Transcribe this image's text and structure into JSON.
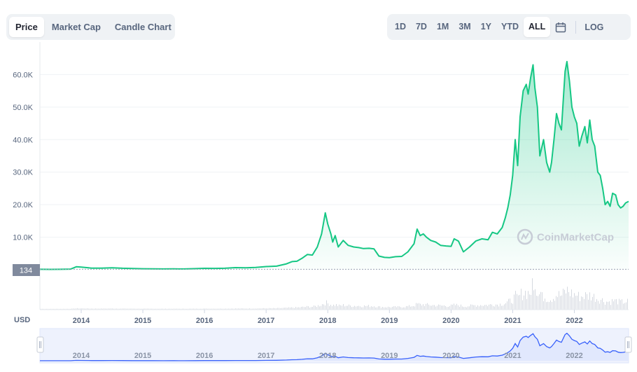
{
  "tabs": [
    "Price",
    "Market Cap",
    "Candle Chart"
  ],
  "active_tab": "Price",
  "ranges": [
    "1D",
    "7D",
    "1M",
    "3M",
    "1Y",
    "YTD",
    "ALL"
  ],
  "active_range": "ALL",
  "log_label": "LOG",
  "watermark": "CoinMarketCap",
  "currency_label": "USD",
  "current_price_label": "134",
  "colors": {
    "line": "#16c784",
    "navigator_line": "#3861fb",
    "navigator_fill": "#e3e9fd"
  },
  "icons": {
    "calendar": "calendar-icon",
    "logo": "coinmarketcap-logo-icon",
    "handle": "navigator-handle-icon"
  },
  "chart_data": {
    "type": "area",
    "ylim": [
      0,
      70000
    ],
    "yticks": [
      10000,
      20000,
      30000,
      40000,
      50000,
      60000
    ],
    "ytick_labels": [
      "10.0K",
      "20.0K",
      "30.0K",
      "40.0K",
      "50.0K",
      "60.0K"
    ],
    "xticks": [
      "2014",
      "2015",
      "2016",
      "2017",
      "2018",
      "2019",
      "2020",
      "2021",
      "2022"
    ],
    "xlim": [
      2013.33,
      2022.88
    ],
    "grid": true,
    "series": [
      {
        "x": [
          2013.33,
          2013.5,
          2013.67,
          2013.83,
          2013.92,
          2014.0,
          2014.17,
          2014.33,
          2014.5,
          2014.67,
          2014.83,
          2015.0,
          2015.17,
          2015.33,
          2015.5,
          2015.67,
          2015.83,
          2016.0,
          2016.17,
          2016.33,
          2016.5,
          2016.67,
          2016.83,
          2017.0,
          2017.17,
          2017.33,
          2017.42,
          2017.5,
          2017.58,
          2017.67,
          2017.75,
          2017.83,
          2017.9,
          2017.96,
          2018.0,
          2018.05,
          2018.08,
          2018.12,
          2018.17,
          2018.25,
          2018.33,
          2018.42,
          2018.5,
          2018.58,
          2018.67,
          2018.75,
          2018.83,
          2018.92,
          2019.0,
          2019.1,
          2019.2,
          2019.3,
          2019.4,
          2019.45,
          2019.5,
          2019.55,
          2019.6,
          2019.67,
          2019.75,
          2019.83,
          2019.92,
          2020.0,
          2020.05,
          2020.12,
          2020.2,
          2020.3,
          2020.4,
          2020.5,
          2020.6,
          2020.67,
          2020.75,
          2020.83,
          2020.88,
          2020.92,
          2020.96,
          2021.0,
          2021.04,
          2021.08,
          2021.12,
          2021.17,
          2021.22,
          2021.25,
          2021.29,
          2021.33,
          2021.36,
          2021.4,
          2021.44,
          2021.5,
          2021.55,
          2021.6,
          2021.63,
          2021.67,
          2021.71,
          2021.75,
          2021.79,
          2021.83,
          2021.85,
          2021.88,
          2021.92,
          2021.96,
          2022.0,
          2022.04,
          2022.08,
          2022.12,
          2022.17,
          2022.21,
          2022.25,
          2022.29,
          2022.33,
          2022.38,
          2022.42,
          2022.46,
          2022.5,
          2022.54,
          2022.58,
          2022.62,
          2022.67,
          2022.71,
          2022.75,
          2022.79,
          2022.83,
          2022.88
        ],
        "values": [
          130,
          100,
          120,
          200,
          900,
          800,
          500,
          500,
          600,
          450,
          380,
          300,
          260,
          240,
          260,
          240,
          330,
          430,
          420,
          450,
          650,
          600,
          720,
          970,
          1100,
          1800,
          2500,
          2600,
          3500,
          4700,
          4500,
          7000,
          11000,
          17500,
          14000,
          11000,
          8500,
          10500,
          7000,
          9000,
          7500,
          7000,
          6800,
          6500,
          6600,
          6400,
          4200,
          3800,
          3700,
          4000,
          4100,
          5500,
          8000,
          12500,
          10500,
          11000,
          10000,
          9000,
          8500,
          7500,
          7300,
          7200,
          9500,
          8800,
          5500,
          7000,
          8800,
          9500,
          9200,
          11500,
          11000,
          13000,
          16000,
          19000,
          23000,
          29000,
          40000,
          32000,
          47000,
          55000,
          57000,
          54000,
          59000,
          63000,
          56000,
          50000,
          35000,
          40000,
          33000,
          30000,
          33000,
          40000,
          48000,
          45000,
          43000,
          55000,
          61000,
          64000,
          58000,
          50000,
          47000,
          45000,
          38000,
          41000,
          44000,
          39000,
          46000,
          40000,
          38000,
          30000,
          29000,
          25000,
          20000,
          21000,
          19500,
          23500,
          23000,
          20000,
          19000,
          19500,
          20500,
          21000
        ]
      }
    ]
  }
}
